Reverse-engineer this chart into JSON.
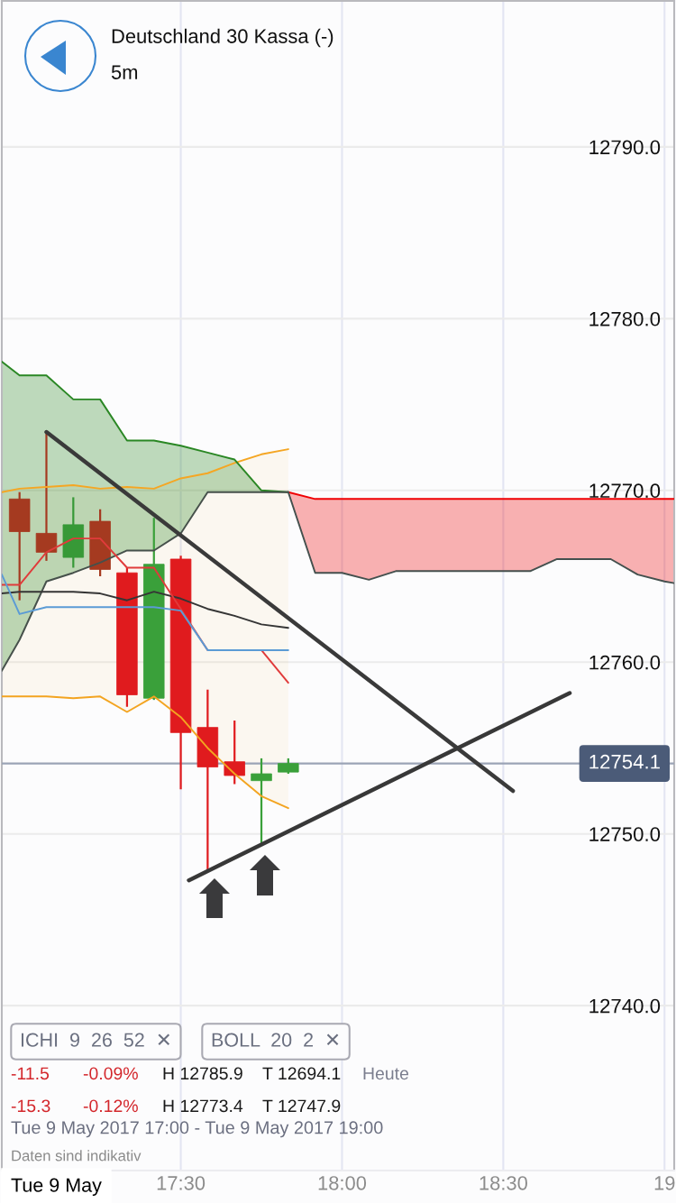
{
  "chart_data": {
    "type": "candlestick",
    "title": "Deutschland 30 Kassa (-)",
    "subtitle": "5m",
    "x": [
      17.0,
      17.0833,
      17.1667,
      17.25,
      17.3333,
      17.4167,
      17.5,
      17.5833,
      17.6667,
      17.75,
      17.8333
    ],
    "ohlc": [
      [
        12769.5,
        12769.9,
        12763.6,
        12767.6
      ],
      [
        12767.5,
        12773.4,
        12765.9,
        12766.4
      ],
      [
        12766.1,
        12769.6,
        12765.5,
        12768.0
      ],
      [
        12768.2,
        12768.9,
        12765.0,
        12765.4
      ],
      [
        12765.2,
        12765.5,
        12757.4,
        12758.1
      ],
      [
        12757.9,
        12768.4,
        12757.8,
        12765.7
      ],
      [
        12766.0,
        12766.2,
        12752.6,
        12755.9
      ],
      [
        12756.2,
        12758.4,
        12747.9,
        12753.9
      ],
      [
        12754.2,
        12756.6,
        12752.9,
        12753.4
      ],
      [
        12753.1,
        12754.4,
        12749.4,
        12753.5
      ],
      [
        12753.6,
        12754.4,
        12753.5,
        12754.1
      ]
    ],
    "colors": [
      "#a53a20",
      "#a53a20",
      "#379937",
      "#a53a20",
      "#e01b1e",
      "#3aa03a",
      "#e01b1e",
      "#e01b1e",
      "#e01b1e",
      "#3aa03a",
      "#3aa03a"
    ],
    "series": [
      {
        "type": "line",
        "color": "#f5a623",
        "x": [
          16.945,
          17.0,
          17.0833,
          17.1667,
          17.25,
          17.3333,
          17.4167,
          17.5,
          17.5833,
          17.6667,
          17.75,
          17.8333
        ],
        "values": [
          12769.9,
          12770.1,
          12770.2,
          12770.3,
          12770.1,
          12770.2,
          12770.1,
          12770.7,
          12771.0,
          12771.6,
          12772.1,
          12772.4
        ],
        "lower": [
          12758.0,
          12758.0,
          12758.0,
          12757.9,
          12758.0,
          12757.1,
          12758.0,
          12756.8,
          12755.0,
          12753.5,
          12752.2,
          12751.5
        ],
        "upper": [
          12769.9,
          12770.1,
          12770.2,
          12770.3,
          12770.1,
          12770.2,
          12770.1,
          12770.7,
          12771.0,
          12771.6,
          12772.1,
          12772.4
        ]
      },
      {
        "type": "line",
        "color": "#2a8724",
        "x": [
          16.945,
          17.0,
          17.0833,
          17.1667,
          17.25,
          17.3333,
          17.4167,
          17.5,
          17.5833,
          17.6667,
          17.75,
          17.8333
        ],
        "values": [
          12777.5,
          12776.7,
          12776.7,
          12775.3,
          12775.3,
          12772.9,
          12772.9,
          12772.6,
          12772.2,
          12771.8,
          12770.0,
          12769.9
        ],
        "lower": [
          12759.5,
          12761.3,
          12764.7,
          12765.2,
          12765.8,
          12766.5,
          12766.5,
          12767.5,
          12769.9,
          12769.9,
          12769.9,
          12769.9
        ],
        "upper": [
          12777.5,
          12776.7,
          12776.7,
          12775.3,
          12775.3,
          12772.9,
          12772.9,
          12772.6,
          12772.2,
          12771.8,
          12770.0,
          12769.9
        ]
      },
      {
        "type": "line",
        "color": "#ef0003",
        "x": [
          17.8333,
          17.9167,
          18.0,
          18.0833,
          18.1667,
          18.25,
          18.3333,
          18.4167,
          18.5,
          18.5833,
          18.6667,
          18.75,
          18.8333,
          18.9167,
          19.0,
          19.03
        ],
        "values": [
          12769.9,
          12769.5,
          12769.5,
          12769.5,
          12769.5,
          12769.5,
          12769.5,
          12769.5,
          12769.5,
          12769.5,
          12769.5,
          12769.5,
          12769.5,
          12769.5,
          12769.5,
          12769.5
        ],
        "lower": [
          12769.9,
          12765.2,
          12765.2,
          12764.8,
          12765.3,
          12765.3,
          12765.3,
          12765.3,
          12765.3,
          12765.3,
          12766.0,
          12766.0,
          12766.0,
          12765.1,
          12764.7,
          12764.6
        ],
        "upper": [
          12769.9,
          12769.5,
          12769.5,
          12769.5,
          12769.5,
          12769.5,
          12769.5,
          12769.5,
          12769.5,
          12769.5,
          12769.5,
          12769.5,
          12769.5,
          12769.5,
          12769.5,
          12769.5
        ]
      },
      {
        "type": "line",
        "color": "#46504b",
        "x": [
          16.945,
          17.0,
          17.0833,
          17.1667,
          17.25,
          17.3333,
          17.4167,
          17.5,
          17.5833,
          17.6667,
          17.75,
          17.8333
        ],
        "values": [
          12759.5,
          12761.3,
          12764.7,
          12765.2,
          12765.8,
          12766.5,
          12766.5,
          12767.5,
          12769.9,
          12769.9,
          12769.9,
          12769.9
        ]
      },
      {
        "type": "line",
        "color": "#44504e",
        "x": [
          17.8333,
          17.9167,
          18.0,
          18.0833,
          18.1667,
          18.25,
          18.3333,
          18.4167,
          18.5,
          18.5833,
          18.6667,
          18.75,
          18.8333,
          18.9167,
          19.0,
          19.03
        ],
        "values": [
          12769.9,
          12765.2,
          12765.2,
          12764.8,
          12765.3,
          12765.3,
          12765.3,
          12765.3,
          12765.3,
          12765.3,
          12766.0,
          12766.0,
          12766.0,
          12765.1,
          12764.7,
          12764.6
        ]
      },
      {
        "type": "line",
        "color": "#f3a420",
        "x": [
          16.945,
          17.0,
          17.0833,
          17.1667,
          17.25,
          17.3333,
          17.4167,
          17.5,
          17.5833,
          17.6667,
          17.75,
          17.8333
        ],
        "values": [
          12758.0,
          12758.0,
          12758.0,
          12757.9,
          12758.0,
          12757.1,
          12758.0,
          12756.8,
          12755.0,
          12753.5,
          12752.2,
          12751.5
        ]
      },
      {
        "type": "line",
        "color": "#353535",
        "x": [
          16.945,
          17.0,
          17.0833,
          17.1667,
          17.25,
          17.3333,
          17.4167,
          17.5,
          17.5833,
          17.6667,
          17.75,
          17.8333
        ],
        "values": [
          12764.0,
          12764.1,
          12764.1,
          12764.1,
          12764.0,
          12763.6,
          12764.1,
          12763.7,
          12763.1,
          12762.7,
          12762.2,
          12762.0
        ]
      },
      {
        "type": "line",
        "color": "#e03b3b",
        "x": [
          16.945,
          17.0,
          17.0833,
          17.1667,
          17.25,
          17.3333,
          17.4167,
          17.5,
          17.5833,
          17.6667,
          17.75,
          17.8333
        ],
        "values": [
          12764.5,
          12764.5,
          12766.4,
          12767.2,
          12767.2,
          12765.5,
          12765.5,
          12763.1,
          12760.7,
          12760.7,
          12760.7,
          12758.8
        ]
      },
      {
        "type": "line",
        "color": "#5b9bd5",
        "x": [
          16.945,
          17.0,
          17.0833,
          17.1667,
          17.25,
          17.3333,
          17.4167,
          17.5,
          17.5833,
          17.6667,
          17.75,
          17.8333
        ],
        "values": [
          12765.1,
          12762.8,
          12763.2,
          12763.2,
          12763.2,
          12763.2,
          12763.2,
          12763.0,
          12760.7,
          12760.7,
          12760.7,
          12760.7
        ]
      },
      {
        "type": "line",
        "color": "#3a3a3a",
        "x": [
          17.0833,
          18.53
        ],
        "values": [
          12773.4,
          12752.5
        ]
      },
      {
        "type": "line",
        "color": "#383838",
        "x": [
          17.525,
          18.706
        ],
        "values": [
          12747.3,
          12758.2
        ]
      }
    ],
    "xlim": [
      16.945,
      19.03
    ],
    "ylim": [
      12730.4,
      12798.5
    ],
    "xticks": [
      {
        "value": 17.5,
        "label": "17:30"
      },
      {
        "value": 18.0,
        "label": "18:00"
      },
      {
        "value": 18.5,
        "label": "18:30"
      },
      {
        "value": 19.0,
        "label": "19"
      }
    ],
    "yticks": [
      {
        "value": 12740,
        "label": "12740.0"
      },
      {
        "value": 12750,
        "label": "12750.0"
      },
      {
        "value": 12760,
        "label": "12760.0"
      },
      {
        "value": 12770,
        "label": "12770.0"
      },
      {
        "value": 12780,
        "label": "12780.0"
      },
      {
        "value": 12790,
        "label": "12790.0"
      }
    ],
    "grid": true,
    "ref_lines": [
      {
        "axis": "y",
        "value": 12754.1,
        "label": "12754.1",
        "color": "#9ba4b6"
      }
    ],
    "annotations": [
      "ICHI  9  26  52  ✕",
      "BOLL  20  2  ✕",
      "-11.5",
      "-0.09%",
      "H 12785.9",
      "T 12694.1",
      "Heute",
      "-15.3",
      "-0.12%",
      "H 12773.4",
      "T 12747.9",
      "Tue 9 May 2017 17:00 - Tue 9 May 2017 19:00",
      "Daten sind indikativ",
      "Tue 9 May"
    ]
  }
}
